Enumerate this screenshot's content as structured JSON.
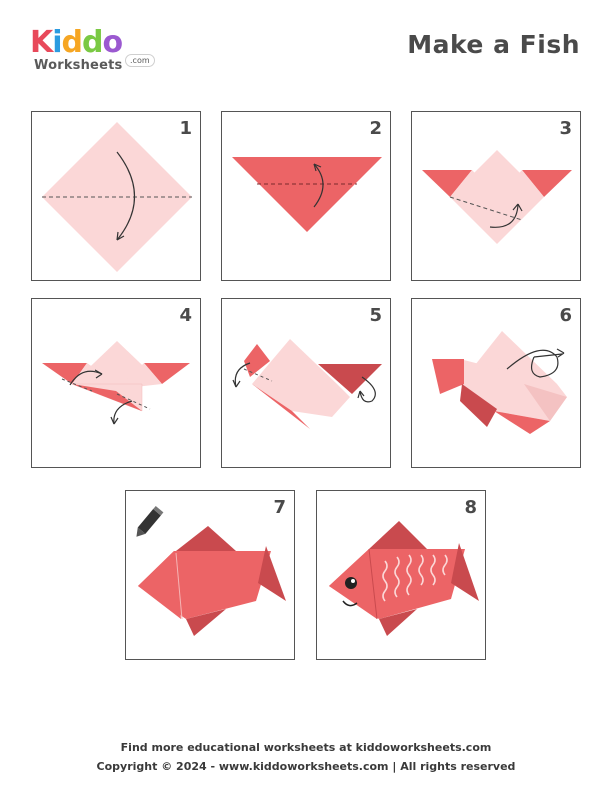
{
  "brand": {
    "logo_letters": [
      "K",
      "i",
      "d",
      "d",
      "o"
    ],
    "logo_sub": "Worksheets",
    "logo_domain": ".com"
  },
  "title": "Make a Fish",
  "steps": [
    {
      "number": "1"
    },
    {
      "number": "2"
    },
    {
      "number": "3"
    },
    {
      "number": "4"
    },
    {
      "number": "5"
    },
    {
      "number": "6"
    },
    {
      "number": "7"
    },
    {
      "number": "8"
    }
  ],
  "footer": {
    "line1": "Find more educational worksheets at kiddoworksheets.com",
    "line2": "Copyright © 2024 - www.kiddoworksheets.com  |  All rights reserved"
  },
  "colors": {
    "paper_light": "#fbd7d7",
    "paper_red": "#ec6466",
    "paper_dark": "#c94a4e",
    "logo_k": "#e8495a",
    "logo_i": "#2b9be0",
    "logo_d1": "#f6a623",
    "logo_d2": "#7ac943",
    "logo_o": "#9b59d0"
  }
}
